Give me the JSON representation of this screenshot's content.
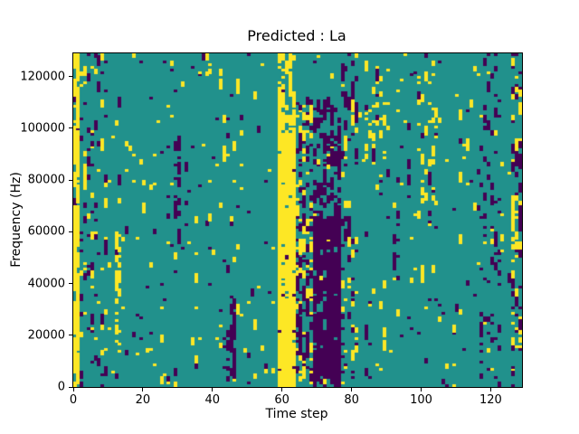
{
  "figure": {
    "title": "Predicted : La",
    "xlabel": "Time step",
    "ylabel": "Frequency (Hz)"
  },
  "chart_data": {
    "type": "heatmap",
    "title": "Predicted : La",
    "xlabel": "Time step",
    "ylabel": "Frequency (Hz)",
    "x_range": [
      0,
      129
    ],
    "y_range": [
      0,
      129000
    ],
    "xticks": [
      0,
      20,
      40,
      60,
      80,
      100,
      120
    ],
    "yticks": [
      0,
      20000,
      40000,
      60000,
      80000,
      100000,
      120000
    ],
    "grid": {
      "cols": 129,
      "rows": 129
    },
    "colormap": {
      "low": "#440154",
      "mid": "#21918c",
      "high": "#fde725"
    },
    "legend_position": "none",
    "grid_lines": false,
    "base_noise": {
      "yellow": 0.012,
      "purple": 0.012
    },
    "run_extend_boost": 0.45,
    "seed": 7,
    "bands": [
      {
        "color": "yellow",
        "x": [
          0,
          2
        ],
        "y": [
          0,
          129
        ],
        "p": 0.5
      },
      {
        "color": "yellow",
        "x": [
          2,
          10
        ],
        "y": [
          0,
          129
        ],
        "p": 0.05
      },
      {
        "color": "purple",
        "x": [
          2,
          10
        ],
        "y": [
          0,
          129
        ],
        "p": 0.05
      },
      {
        "color": "yellow",
        "x": [
          12,
          14
        ],
        "y": [
          15,
          60
        ],
        "p": 0.25
      },
      {
        "color": "purple",
        "x": [
          29,
          31
        ],
        "y": [
          55,
          95
        ],
        "p": 0.2
      },
      {
        "color": "purple",
        "x": [
          43,
          47
        ],
        "y": [
          0,
          35
        ],
        "p": 0.15
      },
      {
        "color": "yellow",
        "x": [
          59,
          64
        ],
        "y": [
          0,
          98
        ],
        "p": 0.8
      },
      {
        "color": "yellow",
        "x": [
          59,
          64
        ],
        "y": [
          98,
          129
        ],
        "p": 0.3
      },
      {
        "color": "yellow",
        "x": [
          64,
          69
        ],
        "y": [
          0,
          110
        ],
        "p": 0.12
      },
      {
        "color": "purple",
        "x": [
          64,
          69
        ],
        "y": [
          0,
          110
        ],
        "p": 0.15
      },
      {
        "color": "purple",
        "x": [
          69,
          77
        ],
        "y": [
          0,
          65
        ],
        "p": 0.55
      },
      {
        "color": "purple",
        "x": [
          69,
          77
        ],
        "y": [
          65,
          110
        ],
        "p": 0.25
      },
      {
        "color": "purple",
        "x": [
          77,
          82
        ],
        "y": [
          0,
          129
        ],
        "p": 0.08
      },
      {
        "color": "yellow",
        "x": [
          77,
          82
        ],
        "y": [
          0,
          129
        ],
        "p": 0.06
      },
      {
        "color": "yellow",
        "x": [
          84,
          90
        ],
        "y": [
          85,
          125
        ],
        "p": 0.12
      },
      {
        "color": "purple",
        "x": [
          92,
          94
        ],
        "y": [
          40,
          70
        ],
        "p": 0.2
      },
      {
        "color": "yellow",
        "x": [
          99,
          105
        ],
        "y": [
          70,
          125
        ],
        "p": 0.12
      },
      {
        "color": "purple",
        "x": [
          117,
          123
        ],
        "y": [
          0,
          129
        ],
        "p": 0.08
      },
      {
        "color": "yellow",
        "x": [
          126,
          129
        ],
        "y": [
          0,
          129
        ],
        "p": 0.12
      },
      {
        "color": "purple",
        "x": [
          126,
          129
        ],
        "y": [
          0,
          129
        ],
        "p": 0.1
      }
    ]
  }
}
